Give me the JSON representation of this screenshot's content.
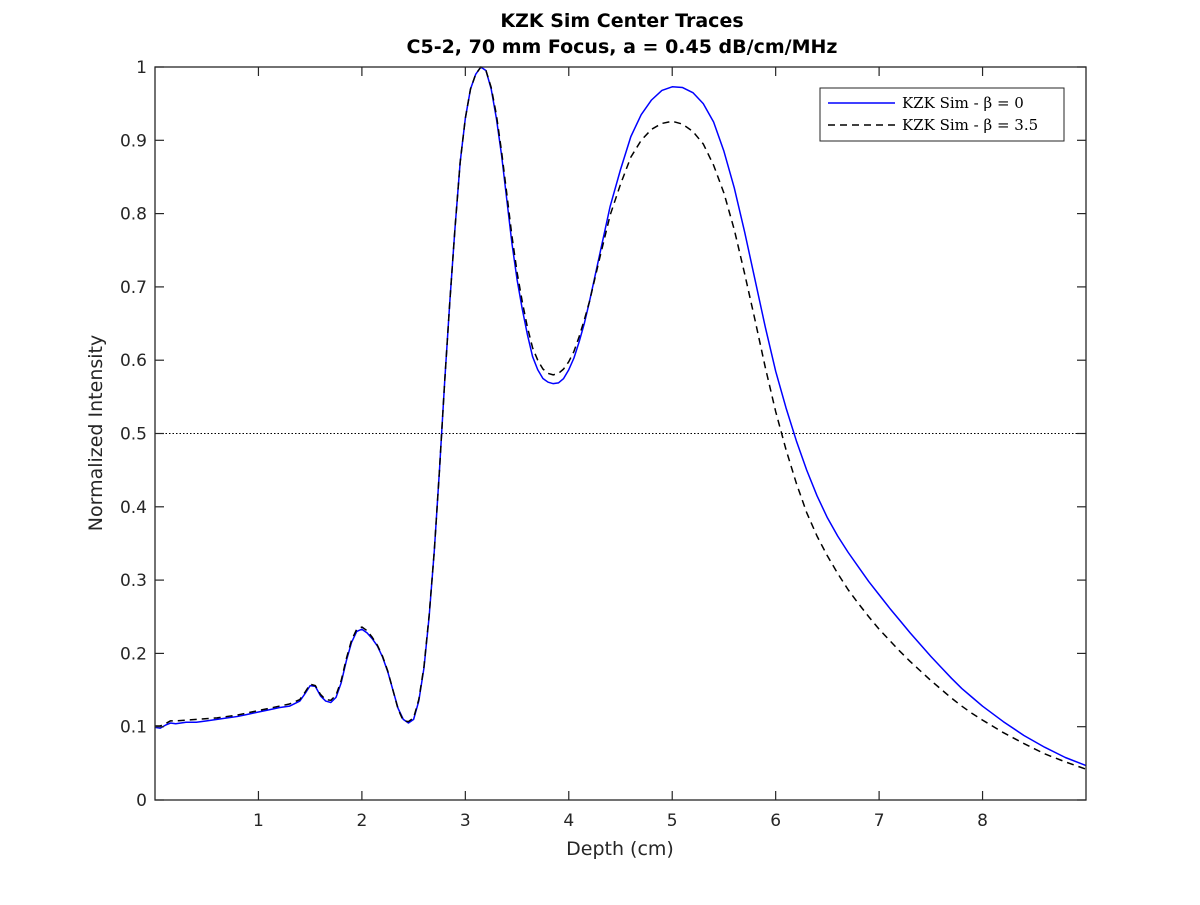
{
  "chart_data": {
    "type": "line",
    "title": "KZK Sim Center Traces",
    "subtitle": "C5-2, 70 mm Focus, a = 0.45 dB/cm/MHz",
    "xlabel": "Depth (cm)",
    "ylabel": "Normalized Intensity",
    "xlim": [
      0,
      9
    ],
    "ylim": [
      0,
      1
    ],
    "xticks": [
      1,
      2,
      3,
      4,
      5,
      6,
      7,
      8
    ],
    "xtick_labels": [
      "1",
      "2",
      "3",
      "4",
      "5",
      "6",
      "7",
      "8"
    ],
    "yticks": [
      0,
      0.1,
      0.2,
      0.3,
      0.4,
      0.5,
      0.6,
      0.7,
      0.8,
      0.9,
      1
    ],
    "ytick_labels": [
      "0",
      "0.1",
      "0.2",
      "0.3",
      "0.4",
      "0.5",
      "0.6",
      "0.7",
      "0.8",
      "0.9",
      "1"
    ],
    "grid": false,
    "legend_placement": "top-right",
    "reference_line": {
      "y": 0.5,
      "style": "dotted",
      "color": "#000000"
    },
    "series": [
      {
        "name": "KZK Sim - β = 0",
        "color": "#0000ff",
        "style": "solid",
        "x": [
          0.0,
          0.05,
          0.1,
          0.15,
          0.2,
          0.3,
          0.4,
          0.5,
          0.6,
          0.7,
          0.8,
          0.9,
          1.0,
          1.1,
          1.2,
          1.3,
          1.4,
          1.45,
          1.5,
          1.55,
          1.6,
          1.65,
          1.7,
          1.75,
          1.8,
          1.85,
          1.9,
          1.95,
          2.0,
          2.05,
          2.1,
          2.15,
          2.2,
          2.25,
          2.3,
          2.35,
          2.4,
          2.45,
          2.5,
          2.55,
          2.6,
          2.65,
          2.7,
          2.75,
          2.8,
          2.85,
          2.9,
          2.95,
          3.0,
          3.05,
          3.1,
          3.15,
          3.2,
          3.25,
          3.3,
          3.35,
          3.4,
          3.45,
          3.5,
          3.55,
          3.6,
          3.65,
          3.7,
          3.75,
          3.8,
          3.85,
          3.9,
          3.95,
          4.0,
          4.05,
          4.1,
          4.15,
          4.2,
          4.3,
          4.4,
          4.5,
          4.6,
          4.7,
          4.8,
          4.9,
          5.0,
          5.1,
          5.2,
          5.3,
          5.4,
          5.5,
          5.6,
          5.7,
          5.8,
          5.9,
          6.0,
          6.1,
          6.2,
          6.3,
          6.4,
          6.5,
          6.6,
          6.7,
          6.8,
          6.9,
          7.0,
          7.1,
          7.2,
          7.3,
          7.4,
          7.5,
          7.6,
          7.7,
          7.8,
          7.9,
          8.0,
          8.2,
          8.4,
          8.6,
          8.8,
          9.0
        ],
        "y": [
          0.099,
          0.098,
          0.102,
          0.105,
          0.104,
          0.106,
          0.106,
          0.108,
          0.11,
          0.112,
          0.114,
          0.117,
          0.12,
          0.123,
          0.126,
          0.128,
          0.135,
          0.145,
          0.156,
          0.155,
          0.142,
          0.135,
          0.133,
          0.14,
          0.16,
          0.19,
          0.215,
          0.23,
          0.233,
          0.228,
          0.22,
          0.21,
          0.195,
          0.175,
          0.15,
          0.125,
          0.11,
          0.105,
          0.11,
          0.135,
          0.18,
          0.25,
          0.34,
          0.45,
          0.57,
          0.68,
          0.78,
          0.87,
          0.93,
          0.97,
          0.99,
          1.0,
          0.995,
          0.97,
          0.93,
          0.88,
          0.82,
          0.76,
          0.71,
          0.67,
          0.635,
          0.605,
          0.587,
          0.575,
          0.57,
          0.568,
          0.569,
          0.575,
          0.587,
          0.603,
          0.625,
          0.65,
          0.68,
          0.745,
          0.81,
          0.86,
          0.905,
          0.935,
          0.955,
          0.968,
          0.973,
          0.972,
          0.965,
          0.95,
          0.925,
          0.885,
          0.835,
          0.775,
          0.71,
          0.645,
          0.585,
          0.535,
          0.49,
          0.45,
          0.415,
          0.385,
          0.36,
          0.338,
          0.318,
          0.298,
          0.28,
          0.262,
          0.245,
          0.228,
          0.212,
          0.196,
          0.181,
          0.166,
          0.152,
          0.14,
          0.128,
          0.107,
          0.088,
          0.072,
          0.058,
          0.047
        ]
      },
      {
        "name": "KZK Sim - β = 3.5",
        "color": "#000000",
        "style": "dashed",
        "x": [
          0.0,
          0.05,
          0.1,
          0.15,
          0.2,
          0.3,
          0.4,
          0.5,
          0.6,
          0.7,
          0.8,
          0.9,
          1.0,
          1.1,
          1.2,
          1.3,
          1.4,
          1.45,
          1.5,
          1.55,
          1.6,
          1.65,
          1.7,
          1.75,
          1.8,
          1.85,
          1.9,
          1.95,
          2.0,
          2.05,
          2.1,
          2.15,
          2.2,
          2.25,
          2.3,
          2.35,
          2.4,
          2.45,
          2.5,
          2.55,
          2.6,
          2.65,
          2.7,
          2.75,
          2.8,
          2.85,
          2.9,
          2.95,
          3.0,
          3.05,
          3.1,
          3.15,
          3.2,
          3.25,
          3.3,
          3.35,
          3.4,
          3.45,
          3.5,
          3.55,
          3.6,
          3.65,
          3.7,
          3.75,
          3.8,
          3.85,
          3.9,
          3.95,
          4.0,
          4.05,
          4.1,
          4.15,
          4.2,
          4.3,
          4.4,
          4.5,
          4.6,
          4.7,
          4.8,
          4.9,
          5.0,
          5.1,
          5.2,
          5.3,
          5.4,
          5.5,
          5.6,
          5.7,
          5.8,
          5.9,
          6.0,
          6.1,
          6.2,
          6.3,
          6.4,
          6.5,
          6.6,
          6.7,
          6.8,
          6.9,
          7.0,
          7.1,
          7.2,
          7.3,
          7.4,
          7.5,
          7.6,
          7.7,
          7.8,
          7.9,
          8.0,
          8.2,
          8.4,
          8.6,
          8.8,
          9.0
        ],
        "y": [
          0.101,
          0.101,
          0.104,
          0.108,
          0.108,
          0.109,
          0.11,
          0.111,
          0.112,
          0.114,
          0.116,
          0.119,
          0.122,
          0.125,
          0.128,
          0.131,
          0.137,
          0.147,
          0.158,
          0.156,
          0.144,
          0.137,
          0.136,
          0.143,
          0.163,
          0.193,
          0.218,
          0.233,
          0.236,
          0.231,
          0.222,
          0.211,
          0.196,
          0.176,
          0.15,
          0.124,
          0.108,
          0.107,
          0.112,
          0.137,
          0.182,
          0.252,
          0.34,
          0.45,
          0.57,
          0.68,
          0.78,
          0.87,
          0.93,
          0.97,
          0.99,
          1.0,
          0.995,
          0.972,
          0.935,
          0.885,
          0.828,
          0.77,
          0.72,
          0.68,
          0.645,
          0.617,
          0.6,
          0.588,
          0.582,
          0.58,
          0.582,
          0.588,
          0.598,
          0.612,
          0.632,
          0.655,
          0.68,
          0.74,
          0.798,
          0.84,
          0.877,
          0.9,
          0.915,
          0.923,
          0.926,
          0.922,
          0.912,
          0.895,
          0.866,
          0.828,
          0.778,
          0.718,
          0.655,
          0.59,
          0.53,
          0.478,
          0.432,
          0.392,
          0.36,
          0.333,
          0.309,
          0.287,
          0.268,
          0.25,
          0.233,
          0.218,
          0.203,
          0.189,
          0.176,
          0.163,
          0.151,
          0.139,
          0.128,
          0.118,
          0.109,
          0.092,
          0.077,
          0.063,
          0.052,
          0.042
        ]
      }
    ]
  }
}
